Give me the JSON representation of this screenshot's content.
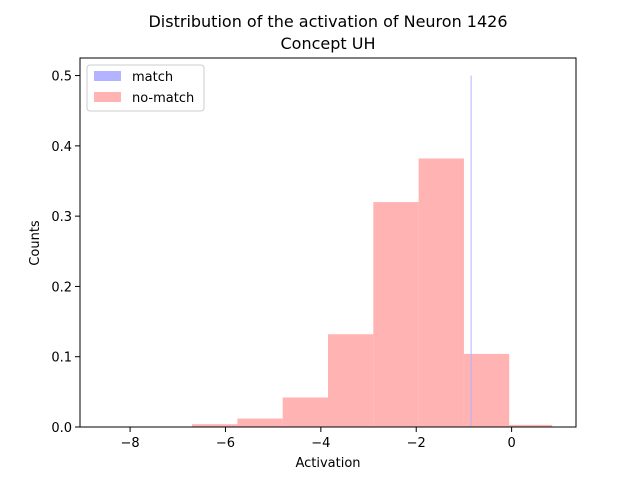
{
  "chart_data": {
    "type": "bar",
    "title": "Distribution of the activation of Neuron 1426",
    "subtitle": "Concept UH",
    "xlabel": "Activation",
    "ylabel": "Counts",
    "xlim": [
      -9.05,
      1.35
    ],
    "ylim": [
      0,
      0.525
    ],
    "xticks": [
      -8,
      -6,
      -4,
      -2,
      0
    ],
    "xtick_labels": [
      "−8",
      "−6",
      "−4",
      "−2",
      "0"
    ],
    "yticks": [
      0.0,
      0.1,
      0.2,
      0.3,
      0.4,
      0.5
    ],
    "ytick_labels": [
      "0.0",
      "0.1",
      "0.2",
      "0.3",
      "0.4",
      "0.5"
    ],
    "grid": false,
    "legend_position": "top-left",
    "series": [
      {
        "name": "match",
        "color": "#b3b3ff",
        "bins": [
          {
            "x0": -0.86,
            "x1": -0.84,
            "value": 0.5
          }
        ]
      },
      {
        "name": "no-match",
        "color": "#ffb3b3",
        "bins": [
          {
            "x0": -6.7,
            "x1": -5.75,
            "value": 0.004
          },
          {
            "x0": -5.75,
            "x1": -4.8,
            "value": 0.012
          },
          {
            "x0": -4.8,
            "x1": -3.85,
            "value": 0.042
          },
          {
            "x0": -3.85,
            "x1": -2.9,
            "value": 0.132
          },
          {
            "x0": -2.9,
            "x1": -1.95,
            "value": 0.32
          },
          {
            "x0": -1.95,
            "x1": -1.0,
            "value": 0.382
          },
          {
            "x0": -1.0,
            "x1": -0.05,
            "value": 0.104
          },
          {
            "x0": -0.05,
            "x1": 0.85,
            "value": 0.003
          }
        ]
      }
    ]
  }
}
